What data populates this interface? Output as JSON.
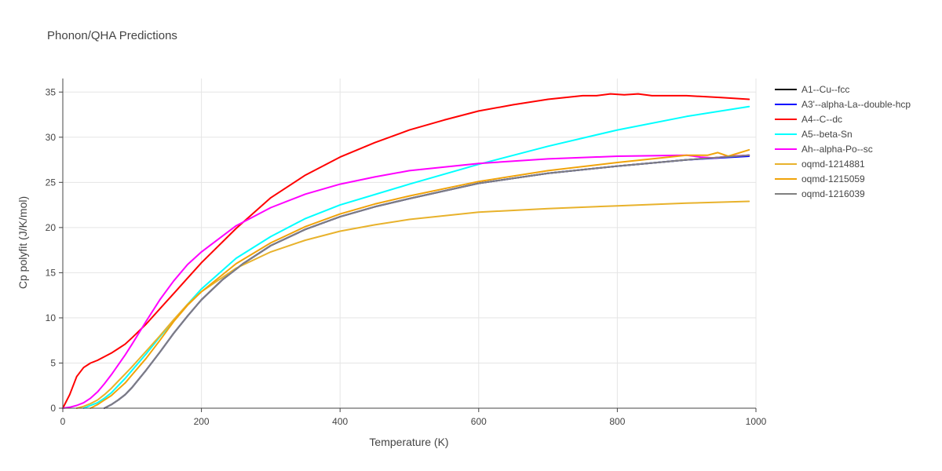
{
  "chart_data": {
    "type": "line",
    "title": "Phonon/QHA Predictions",
    "xlabel": "Temperature (K)",
    "ylabel": "Cp polyfit (J/K/mol)",
    "xlim": [
      0,
      1000
    ],
    "ylim": [
      0,
      36.5
    ],
    "xticks": [
      0,
      200,
      400,
      600,
      800,
      1000
    ],
    "yticks": [
      0,
      5,
      10,
      15,
      20,
      25,
      30,
      35
    ],
    "grid": true,
    "legend_position": "right",
    "series": [
      {
        "name": "A1--Cu--fcc",
        "color": "#000000",
        "x": [
          60,
          70,
          80,
          90,
          100,
          120,
          140,
          160,
          180,
          200,
          230,
          260,
          300,
          350,
          400,
          450,
          500,
          600,
          700,
          800,
          900,
          990
        ],
        "y": [
          0,
          0.4,
          0.9,
          1.5,
          2.3,
          4.2,
          6.2,
          8.3,
          10.2,
          12.0,
          14.2,
          16.0,
          18.0,
          19.8,
          21.2,
          22.3,
          23.2,
          24.9,
          26.0,
          26.8,
          27.5,
          28.0
        ]
      },
      {
        "name": "A3'--alpha-La--double-hcp",
        "color": "#0000ff",
        "x": [
          60,
          70,
          80,
          90,
          100,
          120,
          140,
          160,
          180,
          200,
          230,
          260,
          300,
          350,
          400,
          450,
          500,
          600,
          700,
          800,
          900,
          990
        ],
        "y": [
          0,
          0.4,
          0.9,
          1.5,
          2.3,
          4.2,
          6.2,
          8.3,
          10.2,
          12.0,
          14.2,
          16.0,
          18.0,
          19.8,
          21.2,
          22.3,
          23.2,
          24.9,
          26.0,
          26.8,
          27.5,
          27.9
        ]
      },
      {
        "name": "A4--C--dc",
        "color": "#ff0000",
        "x": [
          0,
          10,
          20,
          30,
          40,
          50,
          60,
          70,
          80,
          90,
          100,
          120,
          140,
          160,
          180,
          200,
          250,
          300,
          350,
          400,
          450,
          500,
          550,
          600,
          650,
          700,
          750,
          770,
          790,
          810,
          830,
          850,
          900,
          950,
          990
        ],
        "y": [
          0,
          1.5,
          3.5,
          4.5,
          5.0,
          5.3,
          5.7,
          6.1,
          6.6,
          7.1,
          7.8,
          9.3,
          11.0,
          12.7,
          14.4,
          16.1,
          19.9,
          23.3,
          25.8,
          27.8,
          29.4,
          30.8,
          31.9,
          32.9,
          33.6,
          34.2,
          34.6,
          34.6,
          34.8,
          34.7,
          34.8,
          34.6,
          34.6,
          34.4,
          34.2
        ]
      },
      {
        "name": "A5--beta-Sn",
        "color": "#00ffff",
        "x": [
          30,
          40,
          50,
          60,
          70,
          80,
          90,
          100,
          120,
          140,
          160,
          180,
          200,
          250,
          300,
          350,
          400,
          500,
          600,
          700,
          800,
          900,
          990
        ],
        "y": [
          0,
          0.3,
          0.6,
          1.1,
          1.7,
          2.5,
          3.3,
          4.2,
          6.0,
          7.9,
          9.7,
          11.5,
          13.2,
          16.6,
          19.0,
          21.0,
          22.5,
          24.8,
          27.0,
          29.0,
          30.8,
          32.3,
          33.4
        ]
      },
      {
        "name": "Ah--alpha-Po--sc",
        "color": "#ff00ff",
        "x": [
          0,
          10,
          20,
          30,
          40,
          50,
          60,
          70,
          80,
          90,
          100,
          120,
          140,
          160,
          180,
          200,
          250,
          300,
          350,
          400,
          450,
          500,
          600,
          700,
          800,
          900,
          920,
          940,
          960,
          990
        ],
        "y": [
          0,
          0.1,
          0.3,
          0.6,
          1.1,
          1.8,
          2.7,
          3.7,
          4.8,
          5.9,
          7.1,
          9.6,
          12.0,
          14.1,
          15.9,
          17.3,
          20.2,
          22.2,
          23.7,
          24.8,
          25.6,
          26.3,
          27.1,
          27.6,
          27.9,
          28.0,
          27.8,
          27.7,
          27.9,
          28.0
        ]
      },
      {
        "name": "oqmd-1214881",
        "color": "#e8b22c",
        "x": [
          20,
          30,
          40,
          50,
          60,
          70,
          80,
          90,
          100,
          120,
          140,
          160,
          180,
          200,
          250,
          300,
          350,
          400,
          450,
          500,
          600,
          700,
          800,
          900,
          990
        ],
        "y": [
          0,
          0.2,
          0.5,
          0.9,
          1.5,
          2.2,
          3.0,
          3.8,
          4.6,
          6.3,
          8.0,
          9.8,
          11.5,
          12.9,
          15.5,
          17.3,
          18.6,
          19.6,
          20.3,
          20.9,
          21.7,
          22.1,
          22.4,
          22.7,
          22.9
        ]
      },
      {
        "name": "oqmd-1215059",
        "color": "#f0a30a",
        "x": [
          40,
          50,
          60,
          70,
          80,
          90,
          100,
          120,
          140,
          160,
          180,
          200,
          250,
          300,
          350,
          400,
          450,
          500,
          600,
          700,
          800,
          900,
          930,
          945,
          960,
          990
        ],
        "y": [
          0,
          0.4,
          0.9,
          1.4,
          2.1,
          2.8,
          3.7,
          5.5,
          7.5,
          9.6,
          11.4,
          12.9,
          16.0,
          18.3,
          20.1,
          21.5,
          22.6,
          23.5,
          25.1,
          26.3,
          27.2,
          28.0,
          28.0,
          28.3,
          27.9,
          28.6
        ]
      },
      {
        "name": "oqmd-1216039",
        "color": "#808080",
        "x": [
          60,
          70,
          80,
          90,
          100,
          120,
          140,
          160,
          180,
          200,
          230,
          260,
          300,
          350,
          400,
          450,
          500,
          600,
          700,
          800,
          900,
          990
        ],
        "y": [
          0,
          0.4,
          0.9,
          1.5,
          2.3,
          4.2,
          6.2,
          8.3,
          10.2,
          12.0,
          14.2,
          16.0,
          18.0,
          19.8,
          21.2,
          22.3,
          23.2,
          24.9,
          26.0,
          26.8,
          27.5,
          28.0
        ]
      }
    ]
  }
}
